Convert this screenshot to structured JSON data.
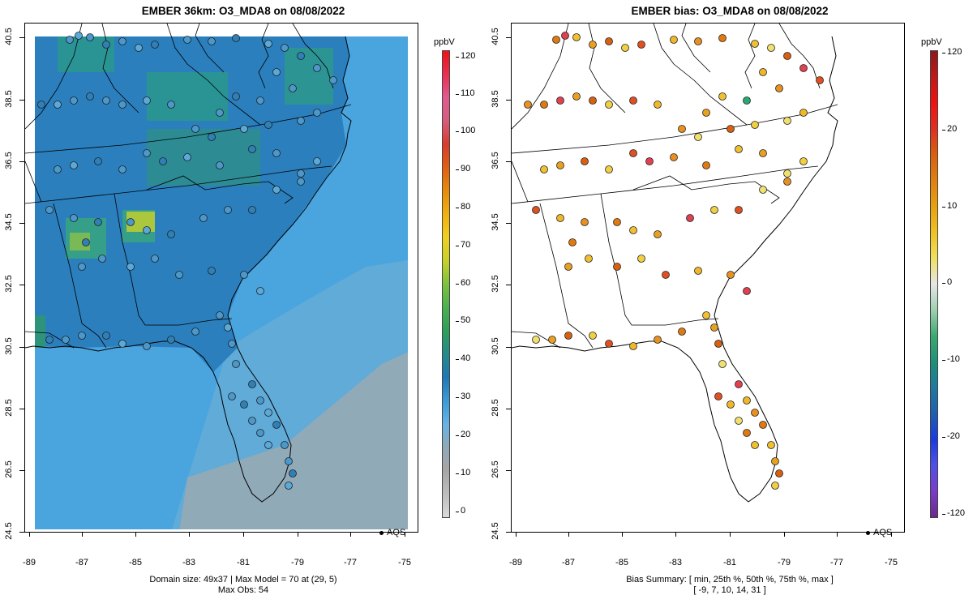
{
  "left_panel": {
    "title": "EMBER 36km: O3_MDA8 on 08/08/2022",
    "footer_line1": "Domain size: 49x37 | Max Model = 70 at (29, 5)",
    "footer_line2": "Max Obs: 54",
    "legend_label": "AQS",
    "colorbar": {
      "unit": "ppbV",
      "ticks": [
        "0",
        "10",
        "20",
        "30",
        "40",
        "50",
        "60",
        "70",
        "80",
        "90",
        "100",
        "110",
        "120"
      ],
      "colors": [
        "#d9d9d9",
        "#bdbdbd",
        "#a6a6a6",
        "#8fa8b8",
        "#66b3e6",
        "#3c9ad6",
        "#1f78b4",
        "#238b8b",
        "#2e9e5a",
        "#4cb050",
        "#7dc23f",
        "#c8d12a",
        "#f0d020",
        "#f0b010",
        "#e88a0a",
        "#e06010",
        "#d83c2c",
        "#d65c7c",
        "#e05a90",
        "#e83050",
        "#f0101a"
      ]
    }
  },
  "right_panel": {
    "title": "EMBER bias: O3_MDA8 on 08/08/2022",
    "footer_line1": "Bias Summary: [ min, 25th %, 50th %, 75th %, max ]",
    "footer_line2": "[ -9,  7,  10,  14,  31 ]",
    "legend_label": "AQS",
    "colorbar": {
      "unit": "ppbV",
      "ticks": [
        "-120",
        "-20",
        "-10",
        "0",
        "10",
        "20",
        "120"
      ],
      "colors": [
        "#6a2a8a",
        "#7a3cc8",
        "#5050e8",
        "#1a3ae0",
        "#1f5fb0",
        "#1f78a0",
        "#1e9078",
        "#3aaa70",
        "#9ed0b0",
        "#e6e6e6",
        "#f0e060",
        "#f0c020",
        "#e8a010",
        "#e08010",
        "#d86010",
        "#e03020",
        "#f01010",
        "#c01818",
        "#8b1a1a"
      ]
    }
  },
  "axes": {
    "x_ticks": [
      "-89",
      "-87",
      "-85",
      "-83",
      "-81",
      "-79",
      "-77",
      "-75"
    ],
    "y_ticks": [
      "24.5",
      "26.5",
      "28.5",
      "30.5",
      "32.5",
      "34.5",
      "36.5",
      "38.5",
      "40.5"
    ]
  }
}
